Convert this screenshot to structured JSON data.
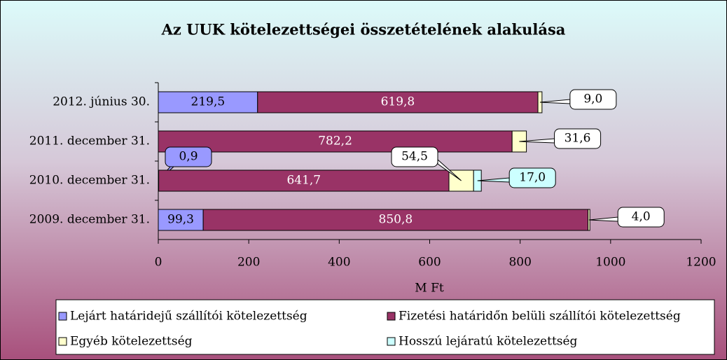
{
  "chart_data": {
    "type": "stacked-barh",
    "title": "Az UUK kötelezettségei összetételének alakulása",
    "xlabel": "M Ft",
    "categories": [
      "2012. június 30.",
      "2011. december 31.",
      "2010. december 31.",
      "2009. december 31."
    ],
    "series": [
      {
        "name": "Lejárt határidejű szállítói kötelezettség",
        "color": "#9999ff",
        "values": [
          219.5,
          null,
          0.9,
          99.3
        ],
        "value_labels": [
          "219,5",
          null,
          "0,9",
          "99,3"
        ]
      },
      {
        "name": "Fizetési határidőn belüli szállítói kötelezettség",
        "color": "#993366",
        "values": [
          619.8,
          782.2,
          641.7,
          850.8
        ],
        "value_labels": [
          "619,8",
          "782,2",
          "641,7",
          "850,8"
        ]
      },
      {
        "name": "Egyéb kötelezettség",
        "color": "#ffffcc",
        "values": [
          9.0,
          31.6,
          54.5,
          4.0
        ],
        "value_labels": [
          "9,0",
          "31,6",
          "54,5",
          "4,0"
        ]
      },
      {
        "name": "Hosszú lejáratú kötelezettség",
        "color": "#ccffff",
        "values": [
          null,
          null,
          17.0,
          null
        ],
        "value_labels": [
          null,
          null,
          "17,0",
          null
        ]
      }
    ],
    "xlim": [
      0,
      1200
    ],
    "xticks": [
      0,
      200,
      400,
      600,
      800,
      1000,
      1200
    ],
    "legend": "bottom"
  }
}
